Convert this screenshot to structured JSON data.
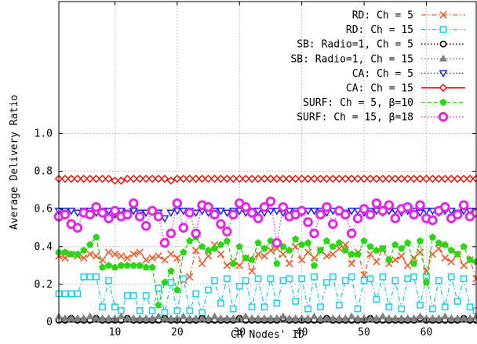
{
  "chart_data": {
    "type": "line",
    "title": "",
    "xlabel": "CR Nodes' ID",
    "ylabel": "Average Delivery Ratio",
    "xlim": [
      1,
      68
    ],
    "ylim": [
      0,
      1.7
    ],
    "x_ticks": [
      10,
      20,
      30,
      40,
      50,
      60
    ],
    "y_ticks": [
      0,
      0.2,
      0.4,
      0.6,
      0.8,
      1.0
    ],
    "y_tick_labels": [
      "0",
      "0.2",
      "0.4",
      "0.6",
      "0.8",
      "1.0"
    ],
    "grid": true,
    "legend_position": "top-right",
    "series": [
      {
        "name": "RD: Ch = 5",
        "color": "#f05a28",
        "marker": "x",
        "dash": "dash-dot",
        "values": [
          0.35,
          0.34,
          0.36,
          0.35,
          0.34,
          0.36,
          0.35,
          0.33,
          0.37,
          0.36,
          0.35,
          0.34,
          0.36,
          0.37,
          0.33,
          0.34,
          0.35,
          0.33,
          0.36,
          0.34,
          0.22,
          0.24,
          0.38,
          0.31,
          0.35,
          0.41,
          0.36,
          0.3,
          0.32,
          0.3,
          0.34,
          0.27,
          0.36,
          0.35,
          0.38,
          0.39,
          0.36,
          0.31,
          0.4,
          0.33,
          0.37,
          0.34,
          0.38,
          0.35,
          0.36,
          0.39,
          0.41,
          0.31,
          0.37,
          0.25,
          0.36,
          0.32,
          0.39,
          0.31,
          0.33,
          0.35,
          0.3,
          0.34,
          0.37,
          0.27,
          0.36,
          0.39,
          0.34,
          0.32,
          0.36,
          0.3,
          0.33,
          0.23
        ]
      },
      {
        "name": "RD: Ch = 15",
        "color": "#1ccfe8",
        "marker": "square",
        "dash": "dash-dot",
        "values": [
          0.15,
          0.15,
          0.15,
          0.15,
          0.24,
          0.24,
          0.24,
          0.08,
          0.22,
          0.08,
          0.06,
          0.14,
          0.14,
          0.06,
          0.14,
          0.06,
          0.18,
          0.05,
          0.21,
          0.06,
          0.23,
          0.06,
          0.15,
          0.05,
          0.17,
          0.22,
          0.1,
          0.23,
          0.07,
          0.19,
          0.22,
          0.08,
          0.23,
          0.08,
          0.23,
          0.1,
          0.22,
          0.23,
          0.11,
          0.23,
          0.07,
          0.24,
          0.08,
          0.21,
          0.24,
          0.09,
          0.22,
          0.24,
          0.07,
          0.22,
          0.23,
          0.12,
          0.24,
          0.08,
          0.22,
          0.07,
          0.23,
          0.24,
          0.09,
          0.24,
          0.07,
          0.22,
          0.08,
          0.24,
          0.11,
          0.23,
          0.08,
          0.06
        ]
      },
      {
        "name": "SB: Radio=1, Ch = 5",
        "color": "#000000",
        "marker": "circle",
        "dash": "dotted",
        "values": [
          0.01,
          0.01,
          0.02,
          0.01,
          0.01,
          0.01,
          0.02,
          0.01,
          0.01,
          0.01,
          0.01,
          0.02,
          0.01,
          0.01,
          0.01,
          0.01,
          0.01,
          0.02,
          0.01,
          0.01,
          0.01,
          0.01,
          0.01,
          0.02,
          0.01,
          0.01,
          0.01,
          0.01,
          0.01,
          0.02,
          0.01,
          0.01,
          0.01,
          0.01,
          0.01,
          0.01,
          0.02,
          0.01,
          0.01,
          0.01,
          0.01,
          0.01,
          0.01,
          0.02,
          0.01,
          0.01,
          0.01,
          0.01,
          0.01,
          0.01,
          0.02,
          0.01,
          0.01,
          0.01,
          0.01,
          0.01,
          0.01,
          0.01,
          0.02,
          0.01,
          0.01,
          0.01,
          0.01,
          0.01,
          0.01,
          0.02,
          0.01,
          0.01
        ]
      },
      {
        "name": "SB: Radio=1, Ch = 15",
        "color": "#808080",
        "marker": "triangle",
        "dash": "dotted",
        "values": [
          0.03,
          0.02,
          0.02,
          0.02,
          0.02,
          0.03,
          0.02,
          0.02,
          0.02,
          0.02,
          0.03,
          0.02,
          0.02,
          0.02,
          0.02,
          0.02,
          0.03,
          0.02,
          0.02,
          0.02,
          0.03,
          0.02,
          0.02,
          0.02,
          0.02,
          0.03,
          0.02,
          0.02,
          0.02,
          0.02,
          0.03,
          0.02,
          0.02,
          0.02,
          0.02,
          0.02,
          0.03,
          0.02,
          0.02,
          0.02,
          0.02,
          0.03,
          0.02,
          0.02,
          0.02,
          0.02,
          0.02,
          0.03,
          0.02,
          0.02,
          0.02,
          0.02,
          0.03,
          0.02,
          0.02,
          0.02,
          0.02,
          0.02,
          0.03,
          0.02,
          0.02,
          0.02,
          0.03,
          0.02,
          0.02,
          0.02,
          0.02,
          0.03
        ]
      },
      {
        "name": "CA: Ch = 5",
        "color": "#1426e0",
        "marker": "triangle-down",
        "dash": "dotted",
        "values": [
          0.59,
          0.59,
          0.59,
          0.58,
          0.59,
          0.59,
          0.58,
          0.59,
          0.59,
          0.57,
          0.59,
          0.58,
          0.59,
          0.58,
          0.58,
          0.59,
          0.58,
          0.55,
          0.58,
          0.59,
          0.59,
          0.59,
          0.58,
          0.59,
          0.58,
          0.59,
          0.59,
          0.58,
          0.59,
          0.59,
          0.58,
          0.59,
          0.59,
          0.58,
          0.59,
          0.59,
          0.58,
          0.59,
          0.59,
          0.58,
          0.59,
          0.59,
          0.59,
          0.58,
          0.59,
          0.59,
          0.58,
          0.59,
          0.59,
          0.58,
          0.59,
          0.59,
          0.58,
          0.59,
          0.59,
          0.58,
          0.59,
          0.59,
          0.58,
          0.59,
          0.59,
          0.58,
          0.59,
          0.59,
          0.58,
          0.59,
          0.59,
          0.58
        ]
      },
      {
        "name": "CA: Ch = 15",
        "color": "#e61e14",
        "marker": "diamond",
        "dash": "solid",
        "values": [
          0.76,
          0.76,
          0.76,
          0.76,
          0.76,
          0.76,
          0.76,
          0.76,
          0.76,
          0.75,
          0.75,
          0.76,
          0.76,
          0.76,
          0.76,
          0.76,
          0.76,
          0.76,
          0.75,
          0.76,
          0.76,
          0.76,
          0.76,
          0.76,
          0.76,
          0.76,
          0.76,
          0.76,
          0.76,
          0.76,
          0.76,
          0.76,
          0.76,
          0.76,
          0.76,
          0.76,
          0.76,
          0.76,
          0.76,
          0.76,
          0.76,
          0.76,
          0.76,
          0.76,
          0.76,
          0.76,
          0.76,
          0.76,
          0.76,
          0.76,
          0.76,
          0.76,
          0.76,
          0.76,
          0.76,
          0.76,
          0.76,
          0.76,
          0.76,
          0.76,
          0.76,
          0.76,
          0.76,
          0.76,
          0.76,
          0.76,
          0.76,
          0.76
        ]
      },
      {
        "name": "SURF: Ch = 5, β=10",
        "color": "#2bd615",
        "marker": "pentagon",
        "dash": "dashed",
        "values": [
          0.37,
          0.37,
          0.36,
          0.36,
          0.38,
          0.41,
          0.45,
          0.29,
          0.3,
          0.29,
          0.3,
          0.3,
          0.3,
          0.3,
          0.29,
          0.29,
          0.09,
          0.21,
          0.27,
          0.17,
          0.37,
          0.43,
          0.45,
          0.4,
          0.38,
          0.39,
          0.41,
          0.43,
          0.31,
          0.4,
          0.34,
          0.33,
          0.42,
          0.39,
          0.43,
          0.31,
          0.4,
          0.38,
          0.44,
          0.41,
          0.42,
          0.3,
          0.38,
          0.43,
          0.4,
          0.42,
          0.38,
          0.36,
          0.36,
          0.43,
          0.4,
          0.38,
          0.39,
          0.33,
          0.41,
          0.39,
          0.42,
          0.31,
          0.43,
          0.21,
          0.45,
          0.42,
          0.41,
          0.38,
          0.36,
          0.4,
          0.33,
          0.32
        ]
      },
      {
        "name": "SURF: Ch = 15, β=18",
        "color": "#e626e6",
        "marker": "ring",
        "dash": "dotted",
        "values": [
          0.56,
          0.57,
          0.52,
          0.5,
          0.58,
          0.57,
          0.61,
          0.58,
          0.55,
          0.59,
          0.56,
          0.57,
          0.63,
          0.56,
          0.51,
          0.59,
          0.56,
          0.42,
          0.47,
          0.63,
          0.5,
          0.58,
          0.47,
          0.62,
          0.61,
          0.57,
          0.52,
          0.48,
          0.57,
          0.63,
          0.61,
          0.58,
          0.55,
          0.61,
          0.64,
          0.42,
          0.61,
          0.56,
          0.57,
          0.59,
          0.53,
          0.47,
          0.57,
          0.61,
          0.52,
          0.59,
          0.57,
          0.47,
          0.55,
          0.6,
          0.57,
          0.63,
          0.59,
          0.62,
          0.55,
          0.6,
          0.61,
          0.57,
          0.62,
          0.55,
          0.54,
          0.59,
          0.61,
          0.55,
          0.57,
          0.62,
          0.56,
          0.58
        ]
      }
    ]
  }
}
